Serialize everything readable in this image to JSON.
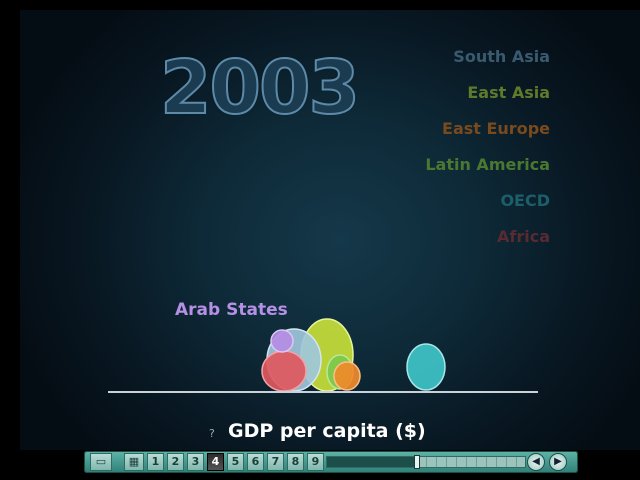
{
  "year": "2003",
  "legend": [
    {
      "label": "South Asia",
      "color": "#3a5a70"
    },
    {
      "label": "East Asia",
      "color": "#5f7a2a"
    },
    {
      "label": "East Europe",
      "color": "#7a4a1c"
    },
    {
      "label": "Latin America",
      "color": "#4a7830"
    },
    {
      "label": "OECD",
      "color": "#1c5f6a"
    },
    {
      "label": "Africa",
      "color": "#5a2a32"
    }
  ],
  "highlight_label": "Arab States",
  "x_axis_label": "GDP per capita ($)",
  "help_icon": "?",
  "bubbles": [
    {
      "name": "east-asia-bubble",
      "color": "#c8e03a",
      "edge": "#e7f59a"
    },
    {
      "name": "south-asia-bubble",
      "color": "#9ec5dc",
      "edge": "#d3e6f0"
    },
    {
      "name": "africa-bubble",
      "color": "#e0585e",
      "edge": "#f2a2a5"
    },
    {
      "name": "latin-america-bubble",
      "color": "#7cc84a",
      "edge": "#b9e89a"
    },
    {
      "name": "east-europe-bubble",
      "color": "#f08a2a",
      "edge": "#f7c08a"
    },
    {
      "name": "arab-states-bubble",
      "color": "#b48de4",
      "edge": "#dcc8f4"
    },
    {
      "name": "oecd-bubble",
      "color": "#3fc4c8",
      "edge": "#a5e6e8"
    }
  ],
  "toolbar": {
    "page_buttons": [
      "1",
      "2",
      "3",
      "4",
      "5",
      "6",
      "7",
      "8",
      "9"
    ],
    "active_page": "4",
    "icons": [
      "page-icon",
      "grid-icon",
      "rewind-icon",
      "play-icon"
    ],
    "progress": 0.45
  }
}
